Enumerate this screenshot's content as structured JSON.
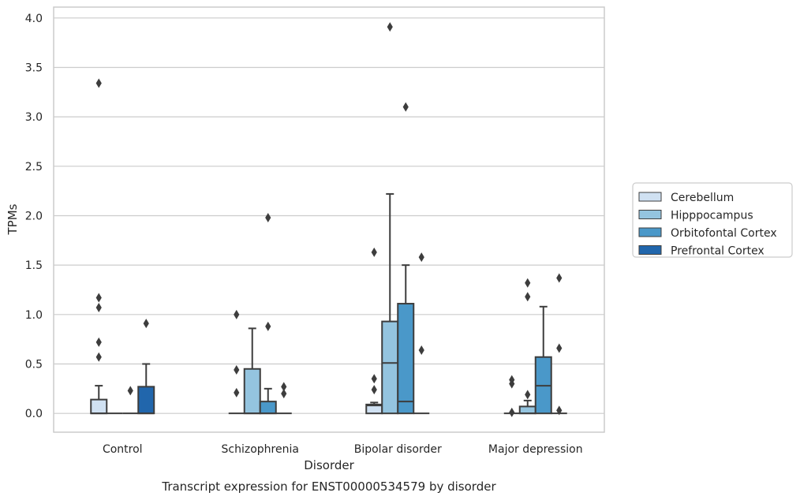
{
  "chart_data": {
    "type": "box",
    "title": "",
    "caption": "Transcript expression for ENST00000534579 by disorder",
    "xlabel": "Disorder",
    "ylabel": "TPMs",
    "ylim": [
      -0.19,
      4.11
    ],
    "yticks": [
      "0.0",
      "0.5",
      "1.0",
      "1.5",
      "2.0",
      "2.5",
      "3.0",
      "3.5",
      "4.0"
    ],
    "grid": "horizontal",
    "legend_position": "right",
    "categories": [
      "Control",
      "Schizophrenia",
      "Bipolar disorder",
      "Major depression"
    ],
    "series": [
      {
        "name": "Cerebellum",
        "color": "#d0e1f2",
        "boxes": [
          {
            "q1": 0.0,
            "median": 0.0,
            "q3": 0.14,
            "whislo": 0.0,
            "whishi": 0.28,
            "fliers": [
              0.57,
              0.72,
              1.07,
              1.17,
              3.34
            ]
          },
          {
            "q1": 0.0,
            "median": 0.0,
            "q3": 0.0,
            "whislo": 0.0,
            "whishi": 0.0,
            "fliers": [
              0.21,
              0.44,
              1.0
            ]
          },
          {
            "q1": 0.0,
            "median": 0.08,
            "q3": 0.09,
            "whislo": 0.0,
            "whishi": 0.11,
            "fliers": [
              0.24,
              0.35,
              1.63
            ]
          },
          {
            "q1": 0.0,
            "median": 0.0,
            "q3": 0.0,
            "whislo": 0.0,
            "whishi": 0.0,
            "fliers": [
              0.01,
              0.3,
              0.34
            ]
          }
        ]
      },
      {
        "name": "Hipppocampus",
        "color": "#94c4df",
        "boxes": [
          {
            "q1": 0.0,
            "median": 0.0,
            "q3": 0.0,
            "whislo": 0.0,
            "whishi": 0.0,
            "fliers": []
          },
          {
            "q1": 0.0,
            "median": 0.0,
            "q3": 0.45,
            "whislo": 0.0,
            "whishi": 0.86,
            "fliers": []
          },
          {
            "q1": 0.0,
            "median": 0.51,
            "q3": 0.93,
            "whislo": 0.0,
            "whishi": 2.22,
            "fliers": [
              3.91
            ]
          },
          {
            "q1": 0.0,
            "median": 0.0,
            "q3": 0.07,
            "whislo": 0.0,
            "whishi": 0.13,
            "fliers": [
              0.19,
              1.18,
              1.32
            ]
          }
        ]
      },
      {
        "name": "Orbitofontal Cortex",
        "color": "#4a98c9",
        "boxes": [
          {
            "q1": 0.0,
            "median": 0.0,
            "q3": 0.0,
            "whislo": 0.0,
            "whishi": 0.0,
            "fliers": [
              0.23
            ]
          },
          {
            "q1": 0.0,
            "median": 0.0,
            "q3": 0.12,
            "whislo": 0.0,
            "whishi": 0.25,
            "fliers": [
              0.88,
              1.98
            ]
          },
          {
            "q1": 0.0,
            "median": 0.12,
            "q3": 1.11,
            "whislo": 0.0,
            "whishi": 1.5,
            "fliers": [
              3.1
            ]
          },
          {
            "q1": 0.0,
            "median": 0.28,
            "q3": 0.57,
            "whislo": 0.0,
            "whishi": 1.08,
            "fliers": []
          }
        ]
      },
      {
        "name": "Prefrontal Cortex",
        "color": "#2166ac",
        "boxes": [
          {
            "q1": 0.0,
            "median": 0.0,
            "q3": 0.27,
            "whislo": 0.0,
            "whishi": 0.5,
            "fliers": [
              0.91
            ]
          },
          {
            "q1": 0.0,
            "median": 0.0,
            "q3": 0.0,
            "whislo": 0.0,
            "whishi": 0.0,
            "fliers": [
              0.2,
              0.27
            ]
          },
          {
            "q1": 0.0,
            "median": 0.0,
            "q3": 0.0,
            "whislo": 0.0,
            "whishi": 0.0,
            "fliers": [
              0.64,
              1.58
            ]
          },
          {
            "q1": 0.0,
            "median": 0.0,
            "q3": 0.0,
            "whislo": 0.0,
            "whishi": 0.0,
            "fliers": [
              0.03,
              0.66,
              1.37
            ]
          }
        ]
      }
    ]
  }
}
